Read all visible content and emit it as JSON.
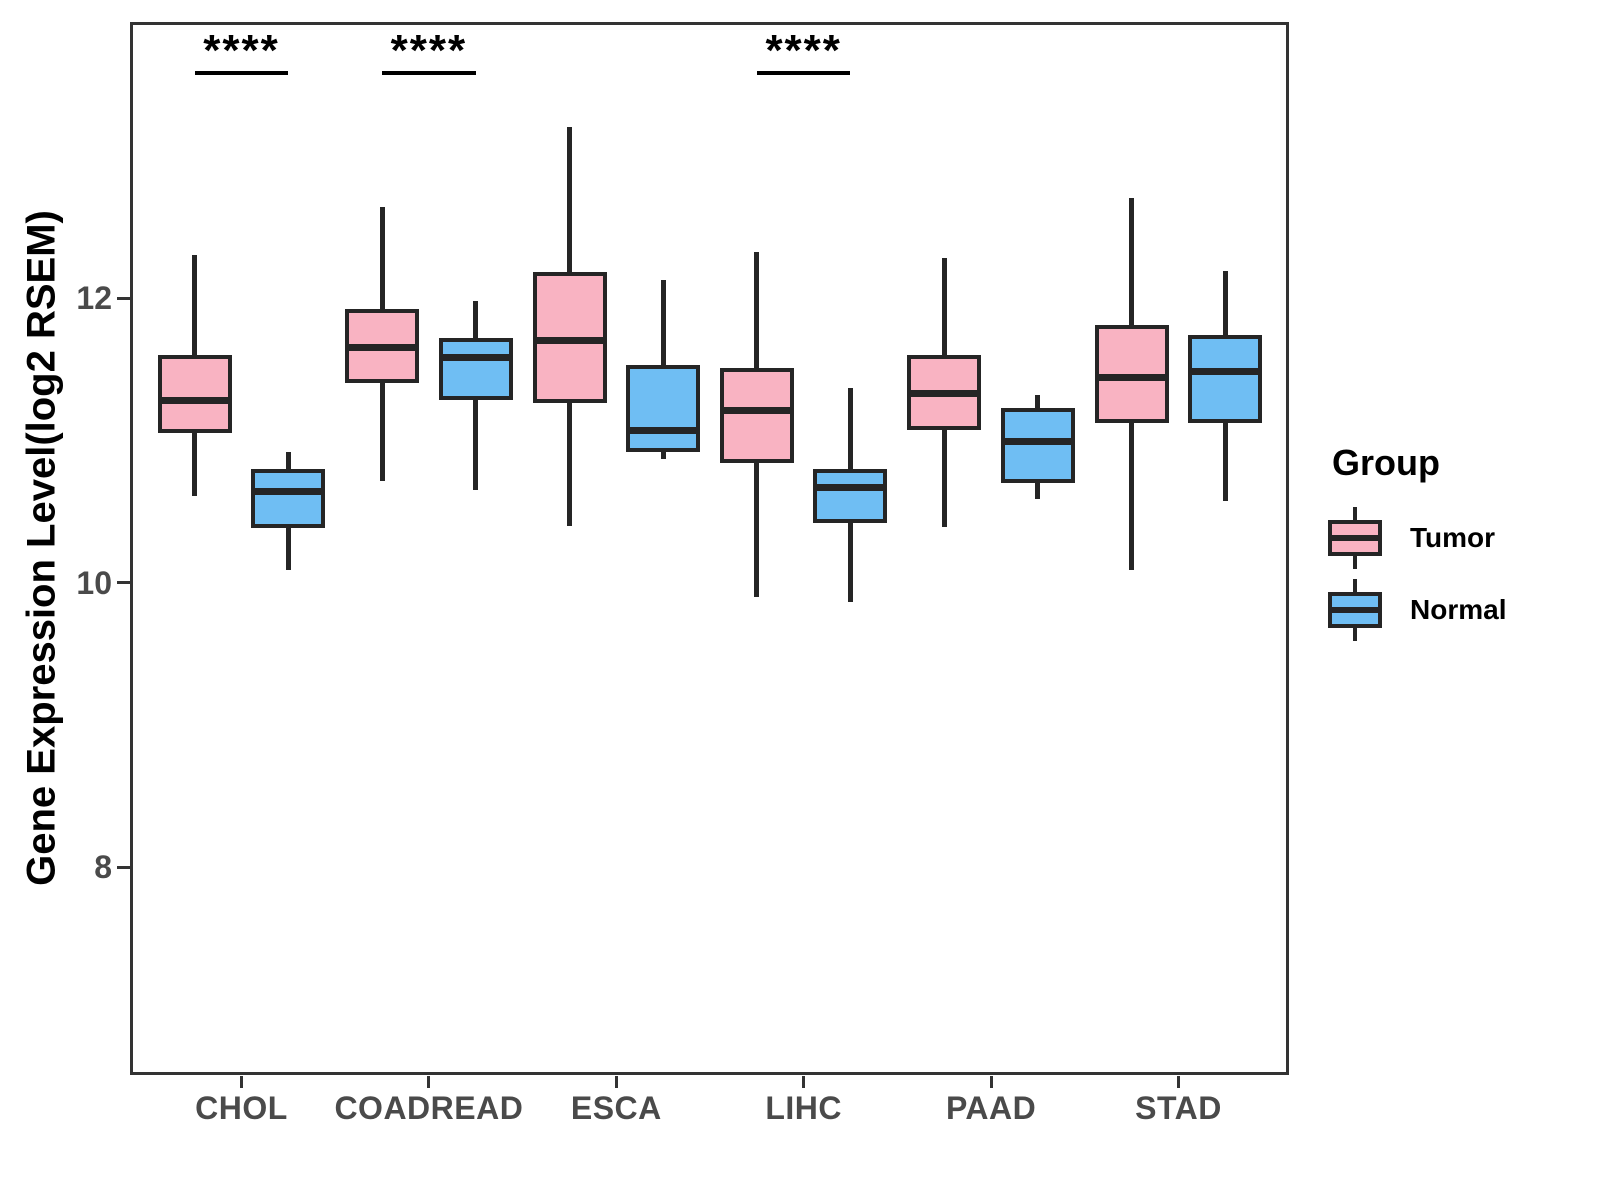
{
  "figure": {
    "y_axis_title": "Gene Expression Level(log2 RSEM)"
  },
  "legend": {
    "title": "Group",
    "entries": [
      {
        "label": "Tumor",
        "series": "Tumor"
      },
      {
        "label": "Normal",
        "series": "Normal"
      }
    ]
  },
  "chart_data": {
    "type": "boxplot",
    "title": "",
    "xlabel": "",
    "ylabel": "Gene Expression Level(log2 RSEM)",
    "categories": [
      "CHOL",
      "COADREAD",
      "ESCA",
      "LIHC",
      "PAAD",
      "STAD"
    ],
    "y_ticks": [
      8,
      10,
      12
    ],
    "ylim": [
      6.5,
      14.0
    ],
    "grid": false,
    "legend_position": "right",
    "series": [
      {
        "name": "Tumor",
        "color": "#F9B3C2",
        "boxes": [
          {
            "category": "CHOL",
            "min": 10.61,
            "q1": 11.05,
            "median": 11.28,
            "q3": 11.6,
            "max": 12.3
          },
          {
            "category": "COADREAD",
            "min": 10.71,
            "q1": 11.4,
            "median": 11.65,
            "q3": 11.92,
            "max": 12.64
          },
          {
            "category": "ESCA",
            "min": 10.4,
            "q1": 11.26,
            "median": 11.7,
            "q3": 12.18,
            "max": 13.2
          },
          {
            "category": "LIHC",
            "min": 9.9,
            "q1": 10.84,
            "median": 11.21,
            "q3": 11.51,
            "max": 12.32
          },
          {
            "category": "PAAD",
            "min": 10.39,
            "q1": 11.07,
            "median": 11.33,
            "q3": 11.6,
            "max": 12.28
          },
          {
            "category": "STAD",
            "min": 10.09,
            "q1": 11.12,
            "median": 11.44,
            "q3": 11.81,
            "max": 12.7
          }
        ]
      },
      {
        "name": "Normal",
        "color": "#6FBEF3",
        "boxes": [
          {
            "category": "CHOL",
            "min": 10.09,
            "q1": 10.38,
            "median": 10.64,
            "q3": 10.8,
            "max": 10.92
          },
          {
            "category": "COADREAD",
            "min": 10.65,
            "q1": 11.28,
            "median": 11.58,
            "q3": 11.72,
            "max": 11.98
          },
          {
            "category": "ESCA",
            "min": 10.87,
            "q1": 10.92,
            "median": 11.07,
            "q3": 11.53,
            "max": 12.13
          },
          {
            "category": "LIHC",
            "min": 9.86,
            "q1": 10.42,
            "median": 10.67,
            "q3": 10.8,
            "max": 11.37
          },
          {
            "category": "PAAD",
            "min": 10.59,
            "q1": 10.7,
            "median": 10.99,
            "q3": 11.23,
            "max": 11.32
          },
          {
            "category": "STAD",
            "min": 10.57,
            "q1": 11.12,
            "median": 11.48,
            "q3": 11.74,
            "max": 12.19
          }
        ]
      }
    ],
    "significance": [
      {
        "category": "CHOL",
        "label": "****"
      },
      {
        "category": "COADREAD",
        "label": "****"
      },
      {
        "category": "LIHC",
        "label": "****"
      }
    ],
    "colors": {
      "tumor_fill": "#F9B3C2",
      "normal_fill": "#6FBEF3",
      "stroke": "#252525",
      "axis_text": "#4A4A4A",
      "panel_border": "#333333"
    }
  }
}
